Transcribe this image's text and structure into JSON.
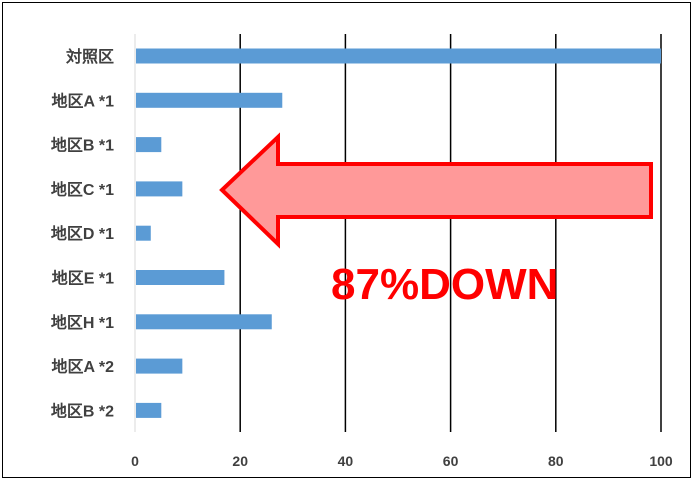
{
  "chart_data": {
    "type": "bar",
    "orientation": "horizontal",
    "categories": [
      "対照区",
      "地区A *1",
      "地区B *1",
      "地区C *1",
      "地区D *1",
      "地区E *1",
      "地区H *1",
      "地区A *2",
      "地区B *2"
    ],
    "values": [
      100,
      28,
      5,
      9,
      3,
      17,
      26,
      9,
      5
    ],
    "xlim": [
      0,
      100
    ],
    "xticks": [
      0,
      20,
      40,
      60,
      80,
      100
    ],
    "xtick_labels": [
      "0",
      "20",
      "40",
      "60",
      "80",
      "100"
    ],
    "grid": "vertical",
    "bar_color": "#5B9BD5",
    "annotation": {
      "text": "87%DOWN",
      "color": "#FF0000",
      "arrow": {
        "direction": "left",
        "fill": "#FF9999",
        "stroke": "#FF0000"
      }
    }
  }
}
